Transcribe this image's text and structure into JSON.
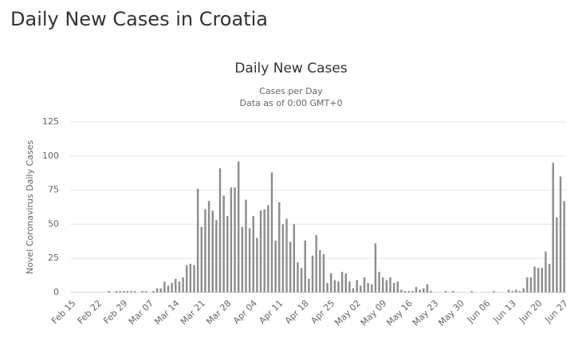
{
  "page_title": "Daily New Cases in Croatia",
  "chart_data": {
    "type": "bar",
    "title": "Daily New Cases",
    "subtitle": [
      "Cases per Day",
      "Data as of 0:00 GMT+0"
    ],
    "y_label": "Novel Coronavirus Daily Cases",
    "color": "#8c8c8c",
    "grid": true,
    "ylim": [
      0,
      125
    ],
    "yticks": [
      0,
      25,
      50,
      75,
      100,
      125
    ],
    "categories": [
      "Feb 15",
      null,
      null,
      null,
      null,
      null,
      null,
      "Feb 22",
      null,
      null,
      null,
      null,
      null,
      null,
      "Feb 29",
      null,
      null,
      null,
      null,
      null,
      null,
      "Mar 07",
      null,
      null,
      null,
      null,
      null,
      null,
      "Mar 14",
      null,
      null,
      null,
      null,
      null,
      null,
      "Mar 21",
      null,
      null,
      null,
      null,
      null,
      null,
      "Mar 28",
      null,
      null,
      null,
      null,
      null,
      null,
      "Apr 04",
      null,
      null,
      null,
      null,
      null,
      null,
      "Apr 11",
      null,
      null,
      null,
      null,
      null,
      null,
      "Apr 18",
      null,
      null,
      null,
      null,
      null,
      null,
      "Apr 25",
      null,
      null,
      null,
      null,
      null,
      null,
      "May 02",
      null,
      null,
      null,
      null,
      null,
      null,
      "May 09",
      null,
      null,
      null,
      null,
      null,
      null,
      "May 16",
      null,
      null,
      null,
      null,
      null,
      null,
      "May 23",
      null,
      null,
      null,
      null,
      null,
      null,
      "May 30",
      null,
      null,
      null,
      null,
      null,
      null,
      "Jun 06",
      null,
      null,
      null,
      null,
      null,
      null,
      "Jun 13",
      null,
      null,
      null,
      null,
      null,
      null,
      "Jun 20",
      null,
      null,
      null,
      null,
      null,
      null,
      "Jun 27"
    ],
    "values": [
      0,
      0,
      0,
      0,
      0,
      0,
      0,
      0,
      0,
      0,
      1,
      0,
      1,
      1,
      1,
      1,
      1,
      1,
      0,
      1,
      1,
      0,
      1,
      3,
      3,
      8,
      5,
      7,
      10,
      8,
      11,
      20,
      21,
      20,
      76,
      48,
      61,
      67,
      60,
      53,
      91,
      71,
      56,
      77,
      77,
      96,
      48,
      68,
      47,
      56,
      40,
      60,
      61,
      64,
      88,
      38,
      66,
      50,
      54,
      37,
      50,
      22,
      18,
      38,
      10,
      27,
      42,
      31,
      28,
      7,
      14,
      9,
      8,
      15,
      14,
      8,
      3,
      9,
      5,
      11,
      7,
      6,
      36,
      15,
      11,
      9,
      11,
      7,
      8,
      2,
      1,
      1,
      1,
      4,
      2,
      3,
      6,
      1,
      0,
      0,
      0,
      1,
      0,
      1,
      0,
      0,
      0,
      0,
      1,
      0,
      0,
      0,
      0,
      0,
      1,
      0,
      0,
      0,
      2,
      1,
      2,
      1,
      3,
      11,
      11,
      19,
      18,
      18,
      30,
      21,
      95,
      55,
      85,
      67
    ]
  }
}
